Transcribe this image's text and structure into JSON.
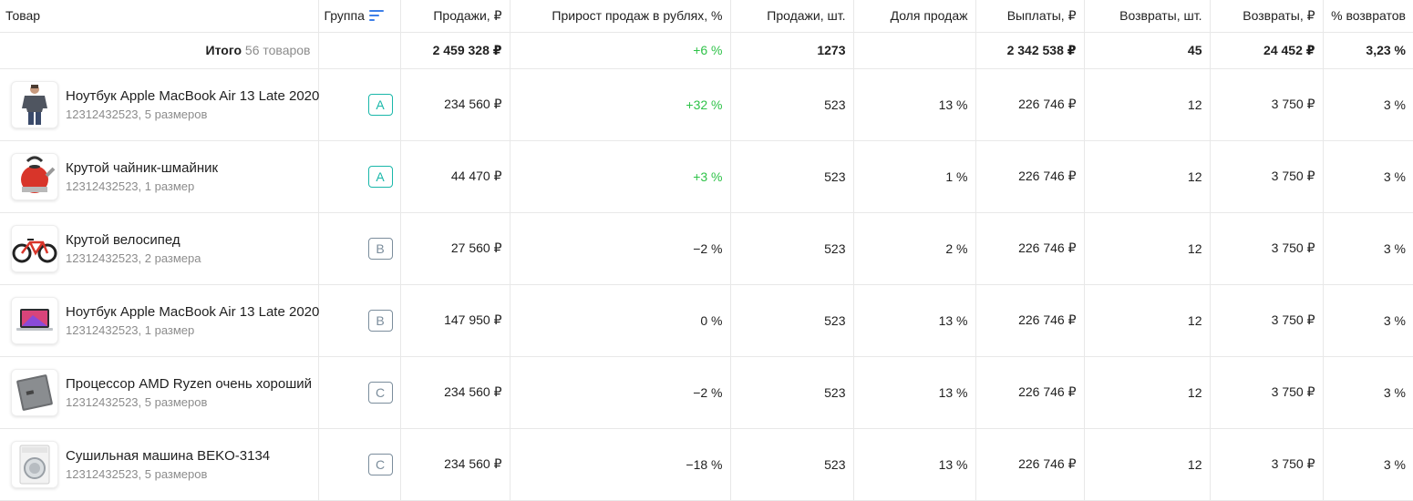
{
  "columns": {
    "product": "Товар",
    "group": "Группа",
    "sales_rub": "Продажи, ₽",
    "growth": "Прирост продаж в рублях, %",
    "sales_qty": "Продажи, шт.",
    "share": "Доля продаж",
    "payouts": "Выплаты, ₽",
    "returns_qty": "Возвраты, шт.",
    "returns_rub": "Возвраты, ₽",
    "returns_pct": "% возвратов"
  },
  "total": {
    "label": "Итого",
    "count": "56 товаров",
    "sales_rub": "2 459 328 ₽",
    "growth": "+6 %",
    "sales_qty": "1273",
    "share": "",
    "payouts": "2 342 538 ₽",
    "returns_qty": "45",
    "returns_rub": "24 452 ₽",
    "returns_pct": "3,23 %"
  },
  "colors": {
    "positive": "#2ec248",
    "group_a": "#19b7a9",
    "group_b": "#7b8d9c",
    "sort_icon": "#3d7fe8"
  },
  "rows": [
    {
      "name": "Ноутбук Apple MacBook Air 13 Late 2020",
      "sub": "12312432523, 5 размеров",
      "icon": "tshirt-man-image",
      "group": "A",
      "sales_rub": "234 560 ₽",
      "growth": "+32 %",
      "sales_qty": "523",
      "share": "13 %",
      "payouts": "226 746 ₽",
      "returns_qty": "12",
      "returns_rub": "3 750 ₽",
      "returns_pct": "3 %"
    },
    {
      "name": "Крутой чайник-шмайник",
      "sub": "12312432523, 1 размер",
      "icon": "kettle-image",
      "group": "A",
      "sales_rub": "44 470 ₽",
      "growth": "+3 %",
      "sales_qty": "523",
      "share": "1 %",
      "payouts": "226 746 ₽",
      "returns_qty": "12",
      "returns_rub": "3 750 ₽",
      "returns_pct": "3 %"
    },
    {
      "name": "Крутой велосипед",
      "sub": "12312432523, 2 размера",
      "icon": "bicycle-image",
      "group": "B",
      "sales_rub": "27 560 ₽",
      "growth": "−2 %",
      "sales_qty": "523",
      "share": "2 %",
      "payouts": "226 746 ₽",
      "returns_qty": "12",
      "returns_rub": "3 750 ₽",
      "returns_pct": "3 %"
    },
    {
      "name": "Ноутбук Apple MacBook Air 13 Late 2020",
      "sub": "12312432523, 1 размер",
      "icon": "laptop-image",
      "group": "B",
      "sales_rub": "147 950 ₽",
      "growth": "0 %",
      "sales_qty": "523",
      "share": "13 %",
      "payouts": "226 746 ₽",
      "returns_qty": "12",
      "returns_rub": "3 750 ₽",
      "returns_pct": "3 %"
    },
    {
      "name": "Процессор AMD Ryzen очень хороший",
      "sub": "12312432523, 5 размеров",
      "icon": "processor-image",
      "group": "C",
      "sales_rub": "234 560 ₽",
      "growth": "−2 %",
      "sales_qty": "523",
      "share": "13 %",
      "payouts": "226 746 ₽",
      "returns_qty": "12",
      "returns_rub": "3 750 ₽",
      "returns_pct": "3 %"
    },
    {
      "name": "Сушильная машина BEKO-3134",
      "sub": "12312432523, 5 размеров",
      "icon": "dryer-image",
      "group": "C",
      "sales_rub": "234 560 ₽",
      "growth": "−18 %",
      "sales_qty": "523",
      "share": "13 %",
      "payouts": "226 746 ₽",
      "returns_qty": "12",
      "returns_rub": "3 750 ₽",
      "returns_pct": "3 %"
    }
  ]
}
